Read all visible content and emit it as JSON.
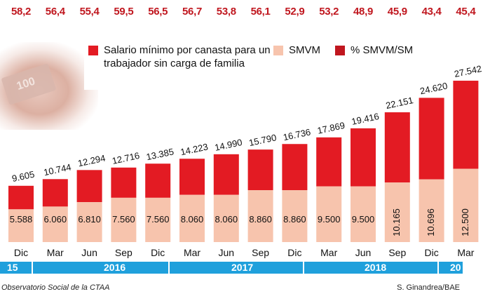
{
  "pct_row": [
    "58,2",
    "56,4",
    "55,4",
    "59,5",
    "56,5",
    "56,7",
    "53,8",
    "56,1",
    "52,9",
    "53,2",
    "48,9",
    "45,9",
    "43,4",
    "45,4"
  ],
  "legend": {
    "canasta": "Salario mínimo por canasta para un trabajador sin carga de familia",
    "smvm": "SMVM",
    "pct": "% SMVM/SM"
  },
  "chart_data": {
    "type": "bar",
    "categories": [
      "Dic",
      "Mar",
      "Jun",
      "Sep",
      "Dic",
      "Mar",
      "Jun",
      "Sep",
      "Dic",
      "Mar",
      "Jun",
      "Sep",
      "Dic",
      "Mar"
    ],
    "series": [
      {
        "name": "Salario mínimo por canasta para un trabajador sin carga de familia",
        "values": [
          9605,
          10744,
          12294,
          12716,
          13385,
          14223,
          14990,
          15790,
          16736,
          17869,
          19416,
          22151,
          24620,
          27542
        ],
        "labels": [
          "9.605",
          "10.744",
          "12.294",
          "12.716",
          "13.385",
          "14.223",
          "14.990",
          "15.790",
          "16.736",
          "17.869",
          "19.416",
          "22.151",
          "24.620",
          "27.542"
        ]
      },
      {
        "name": "SMVM",
        "values": [
          5588,
          6060,
          6810,
          7560,
          7560,
          8060,
          8060,
          8860,
          8860,
          9500,
          9500,
          10165,
          10696,
          12500
        ],
        "labels": [
          "5.588",
          "6.060",
          "6.810",
          "7.560",
          "7.560",
          "8.060",
          "8.060",
          "8.860",
          "8.860",
          "9.500",
          "9.500",
          "10.165",
          "10.696",
          "12.500"
        ]
      }
    ],
    "percent_smvm_sm": [
      58.2,
      56.4,
      55.4,
      59.5,
      56.5,
      56.7,
      53.8,
      56.1,
      52.9,
      53.2,
      48.9,
      45.9,
      43.4,
      45.4
    ],
    "years": [
      "15",
      "2016",
      "2017",
      "2018",
      "20"
    ]
  },
  "colors": {
    "canasta": "#e31b23",
    "smvm": "#f7c4ad",
    "pct": "#c0171f",
    "yearbar": "#1fa0dc"
  },
  "footer": {
    "source": "Observatorio Social de la CTAA",
    "credit": "S. Ginandrea/BAE"
  },
  "background_note": "100"
}
